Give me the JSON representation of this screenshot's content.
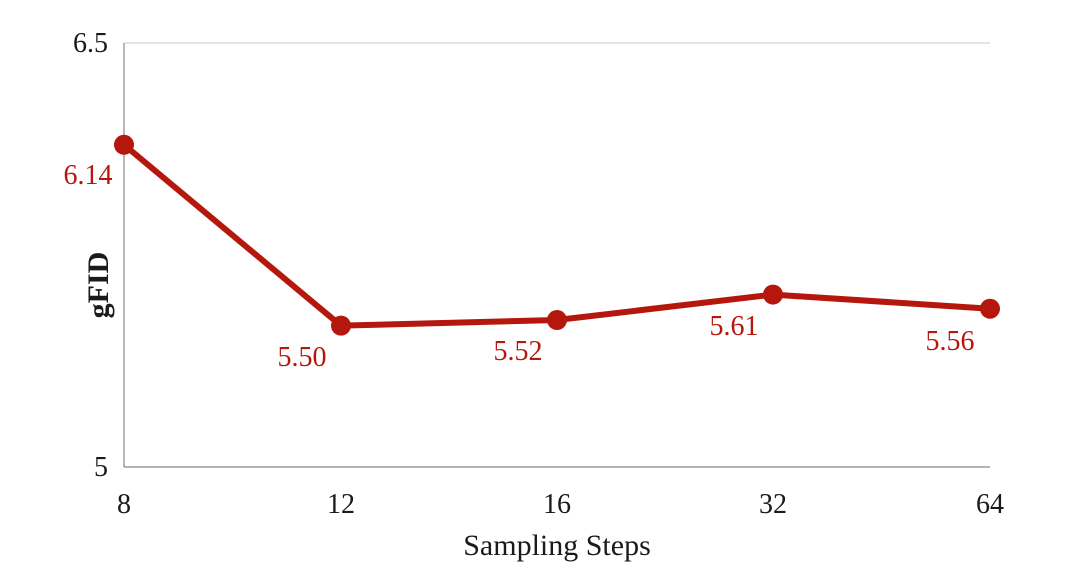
{
  "chart_data": {
    "type": "line",
    "categories": [
      "8",
      "12",
      "16",
      "32",
      "64"
    ],
    "series": [
      {
        "values": [
          6.14,
          5.5,
          5.52,
          5.61,
          5.56
        ],
        "data_labels": [
          "6.14",
          "5.50",
          "5.52",
          "5.61",
          "5.56"
        ],
        "color": "#b5170c"
      }
    ],
    "xlabel": "Sampling Steps",
    "ylabel": "gFID",
    "ylim": [
      5,
      6.5
    ],
    "yticks": [
      "5",
      "6.5"
    ],
    "grid": "top border line only",
    "axis_color": "#888888",
    "text_color": "#1a1a1a"
  }
}
